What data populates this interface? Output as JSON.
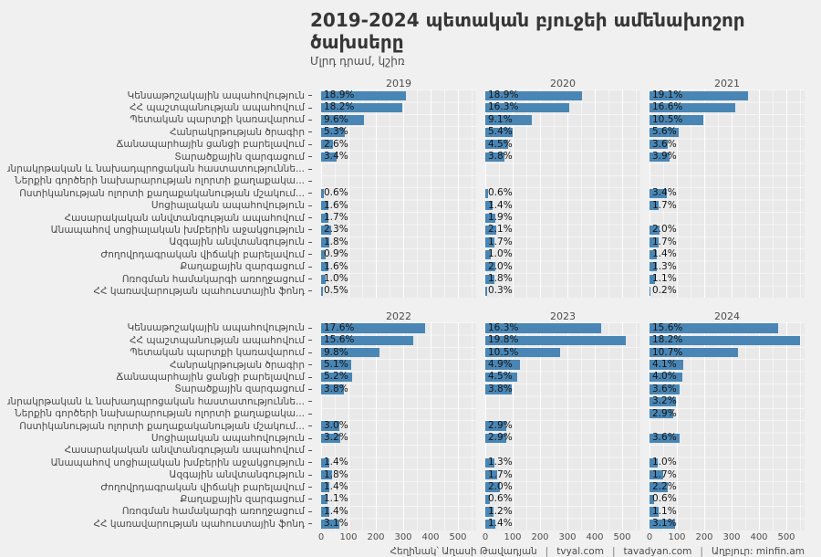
{
  "header": {
    "title": "2019-2024 պետական բյուջեի ամենախոշոր ծախսերը",
    "subtitle": "Մլրդ դրամ, կշիռ"
  },
  "footer": {
    "author": "Հեղինակ՝ Աղասի Թավադյան",
    "site1": "tvyal.com",
    "site2": "tavadyan.com",
    "source": "Աղբյուր: minfin.am",
    "separator": "|"
  },
  "chart_data": {
    "type": "bar",
    "orientation": "horizontal",
    "title": "2019-2024 պետական բյուջեի ամենախոշոր ծախսերը",
    "subtitle": "Մլրդ դրամ, կշիռ",
    "unit": "Մլրդ դրամ",
    "bar_color": "#4986B5",
    "panel_bg": "#E9E9E9",
    "page_bg": "#F0F0F0",
    "grid": true,
    "x_ticks": [
      0,
      100,
      200,
      300,
      400,
      500
    ],
    "x_max": 567,
    "facet_layout": [
      [
        "2019",
        "2020",
        "2021"
      ],
      [
        "2022",
        "2023",
        "2024"
      ]
    ],
    "categories": [
      "Կենսաթոշակային ապահովություն",
      "ՀՀ պաշտպանության ապահովում",
      "Պետական պարտքի կառավարում",
      "Հանրակրթության ծրագիր",
      "Ճանապարհային ցանցի բարելավում",
      "Տարածքային զարգացում",
      "Հանրակրթական և նախադպրոցական հաստատություննե...",
      "Ներքին գործերի նախարարության ոլորտի քաղաքակա...",
      "Ոստիկանության ոլորտի քաղաքականության մշակում...",
      "Սոցիալական ապահովություն",
      "Հասարակական անվտանգության ապահովում",
      "Անապահով սոցիալական խմբերին աջակցություն",
      "Ազգային անվտանգություն",
      "Ժողովրդագրական վիճակի բարելավում",
      "Քաղաքային զարգացում",
      "Ոռոգման համակարգի առողջացում",
      "ՀՀ կառավարության պահուստային ֆոնդ"
    ],
    "panels": [
      {
        "year": "2019",
        "share_labels": [
          "18.9%",
          "18.2%",
          "9.6%",
          "5.3%",
          "2.6%",
          "3.4%",
          null,
          null,
          "0.6%",
          "1.6%",
          "1.7%",
          "2.3%",
          "1.8%",
          "0.9%",
          "1.6%",
          "1.0%",
          "0.5%"
        ],
        "values_billion": [
          310,
          298,
          157,
          87,
          43,
          56,
          null,
          null,
          10,
          26,
          28,
          38,
          30,
          15,
          26,
          16,
          8
        ]
      },
      {
        "year": "2020",
        "share_labels": [
          "18.9%",
          "16.3%",
          "9.1%",
          "5.4%",
          "4.5%",
          "3.8%",
          null,
          null,
          "0.6%",
          "1.4%",
          "1.9%",
          "2.1%",
          "1.7%",
          "1.0%",
          "2.0%",
          "1.8%",
          "0.3%"
        ],
        "values_billion": [
          353,
          305,
          170,
          101,
          84,
          71,
          null,
          null,
          11,
          26,
          36,
          39,
          32,
          19,
          37,
          34,
          6
        ]
      },
      {
        "year": "2021",
        "share_labels": [
          "19.1%",
          "16.6%",
          "10.5%",
          "5.6%",
          "3.6%",
          "3.9%",
          null,
          null,
          "3.4%",
          "1.7%",
          null,
          "2.0%",
          "1.7%",
          "1.4%",
          "1.3%",
          "1.1%",
          "0.2%"
        ],
        "values_billion": [
          361,
          314,
          198,
          106,
          68,
          74,
          null,
          null,
          64,
          32,
          null,
          38,
          32,
          26,
          25,
          21,
          4
        ]
      },
      {
        "year": "2022",
        "share_labels": [
          "17.6%",
          "15.6%",
          "9.8%",
          "5.1%",
          "5.2%",
          "3.8%",
          null,
          null,
          "3.0%",
          "3.2%",
          null,
          "1.4%",
          "1.8%",
          "1.4%",
          "1.1%",
          "1.4%",
          "3.1%"
        ],
        "values_billion": [
          380,
          337,
          212,
          110,
          112,
          82,
          null,
          null,
          65,
          69,
          null,
          30,
          39,
          30,
          24,
          30,
          67
        ]
      },
      {
        "year": "2023",
        "share_labels": [
          "16.3%",
          "19.8%",
          "10.5%",
          "4.9%",
          "4.5%",
          "3.8%",
          null,
          null,
          "2.9%",
          "2.9%",
          null,
          "1.3%",
          "1.7%",
          "2.0%",
          "0.6%",
          "1.2%",
          "1.4%"
        ],
        "values_billion": [
          422,
          513,
          272,
          127,
          117,
          98,
          null,
          null,
          75,
          75,
          null,
          34,
          44,
          52,
          16,
          31,
          36
        ]
      },
      {
        "year": "2024",
        "share_labels": [
          "15.6%",
          "18.2%",
          "10.7%",
          "4.1%",
          "4.0%",
          "3.6%",
          "3.2%",
          "2.9%",
          null,
          "3.6%",
          null,
          "1.0%",
          "1.7%",
          "2.2%",
          "0.6%",
          "1.1%",
          "3.1%"
        ],
        "values_billion": [
          471,
          550,
          323,
          124,
          121,
          109,
          97,
          88,
          null,
          109,
          null,
          30,
          51,
          66,
          18,
          33,
          94
        ]
      }
    ]
  }
}
